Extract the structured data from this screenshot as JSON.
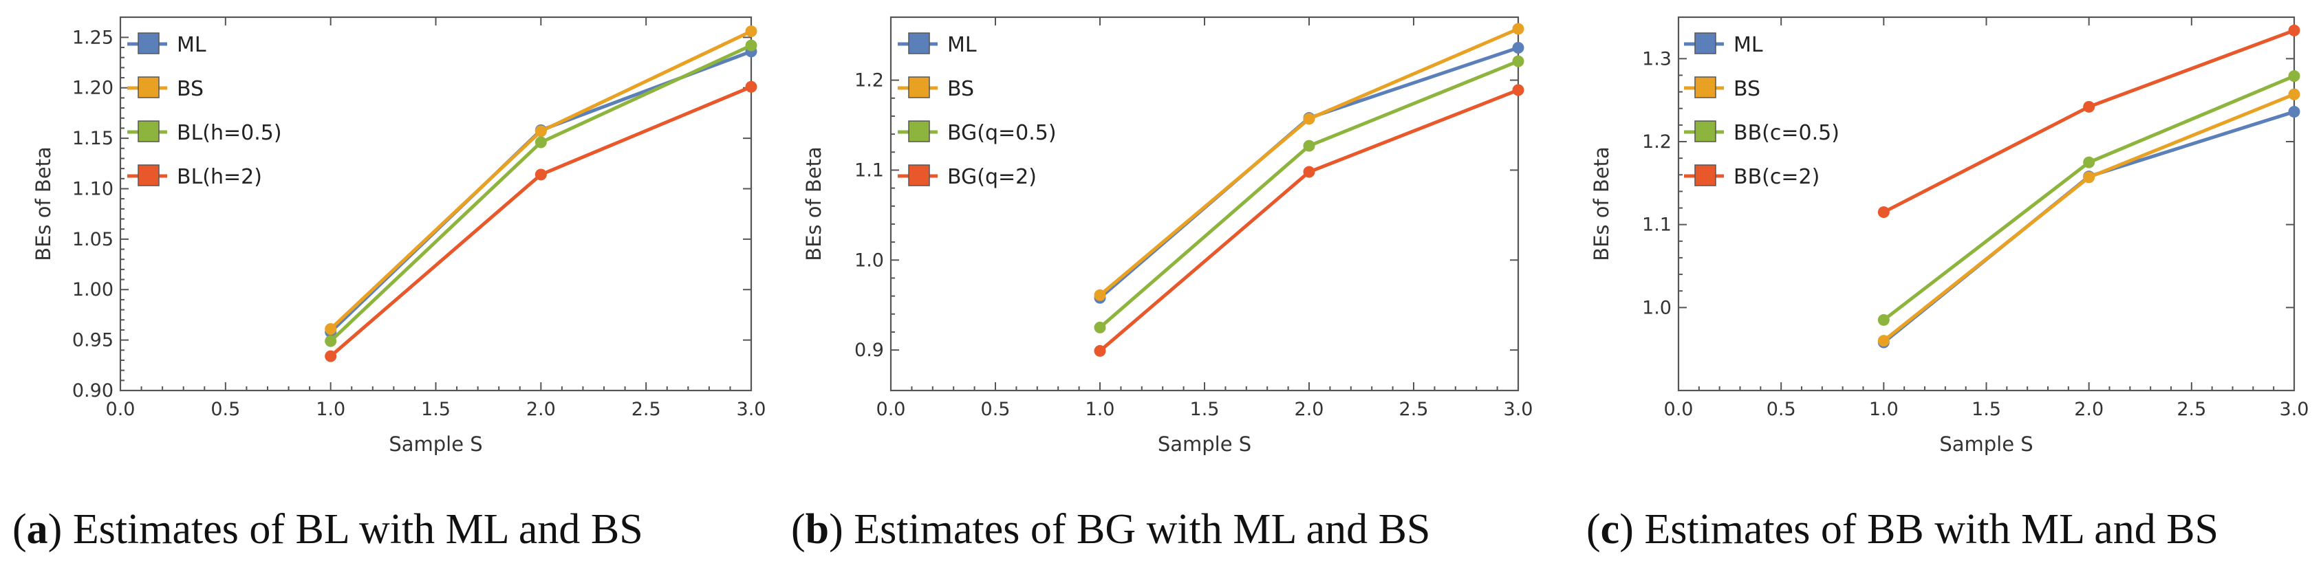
{
  "colors": {
    "ML": "#5b7fb8",
    "BS": "#e9a124",
    "third": "#8db43c",
    "fourth": "#e8582a"
  },
  "chart_data": [
    {
      "type": "line",
      "panel": "a",
      "caption_letter": "a",
      "caption_text": "Estimates of BL with ML and BS",
      "xlabel": "Sample S",
      "ylabel": "BEs of Beta",
      "xlim": [
        0.0,
        3.0
      ],
      "ylim": [
        0.9,
        1.27
      ],
      "xticks": [
        0.0,
        0.5,
        1.0,
        1.5,
        2.0,
        2.5,
        3.0
      ],
      "xtick_labels": [
        "0.0",
        "0.5",
        "1.0",
        "1.5",
        "2.0",
        "2.5",
        "3.0"
      ],
      "yticks": [
        0.9,
        0.95,
        1.0,
        1.05,
        1.1,
        1.15,
        1.2,
        1.25
      ],
      "ytick_labels": [
        "0.90",
        "0.95",
        "1.00",
        "1.05",
        "1.10",
        "1.15",
        "1.20",
        "1.25"
      ],
      "legend_position": "top-left",
      "x": [
        1,
        2,
        3
      ],
      "series": [
        {
          "name": "ML",
          "label": "ML",
          "color_key": "ML",
          "values": [
            0.958,
            1.158,
            1.236
          ]
        },
        {
          "name": "BS",
          "label": "BS",
          "color_key": "BS",
          "values": [
            0.961,
            1.157,
            1.256
          ]
        },
        {
          "name": "BL(h=0.5)",
          "label": "BL(h=0.5)",
          "color_key": "third",
          "values": [
            0.949,
            1.146,
            1.242
          ]
        },
        {
          "name": "BL(h=2)",
          "label": " BL(h=2)",
          "color_key": "fourth",
          "values": [
            0.934,
            1.114,
            1.201
          ]
        }
      ]
    },
    {
      "type": "line",
      "panel": "b",
      "caption_letter": "b",
      "caption_text": "Estimates of BG with ML and BS",
      "xlabel": "Sample S",
      "ylabel": "BEs of Beta",
      "xlim": [
        0.0,
        3.0
      ],
      "ylim": [
        0.855,
        1.27
      ],
      "xticks": [
        0.0,
        0.5,
        1.0,
        1.5,
        2.0,
        2.5,
        3.0
      ],
      "xtick_labels": [
        "0.0",
        "0.5",
        "1.0",
        "1.5",
        "2.0",
        "2.5",
        "3.0"
      ],
      "yticks": [
        0.9,
        1.0,
        1.1,
        1.2
      ],
      "ytick_labels": [
        "0.9",
        "1.0",
        "1.1",
        "1.2"
      ],
      "legend_position": "top-left",
      "x": [
        1,
        2,
        3
      ],
      "series": [
        {
          "name": "ML",
          "label": "ML",
          "color_key": "ML",
          "values": [
            0.958,
            1.158,
            1.236
          ]
        },
        {
          "name": "BS",
          "label": "BS",
          "color_key": "BS",
          "values": [
            0.961,
            1.157,
            1.257
          ]
        },
        {
          "name": "BG(q=0.5)",
          "label": "BG(q=0.5)",
          "color_key": "third",
          "values": [
            0.925,
            1.127,
            1.221
          ]
        },
        {
          "name": "BG(q=2)",
          "label": " BG(q=2)",
          "color_key": "fourth",
          "values": [
            0.899,
            1.098,
            1.189
          ]
        }
      ]
    },
    {
      "type": "line",
      "panel": "c",
      "caption_letter": "c",
      "caption_text": "Estimates of BB with ML and BS",
      "xlabel": "Sample S",
      "ylabel": "BEs of Beta",
      "xlim": [
        0.0,
        3.0
      ],
      "ylim": [
        0.9,
        1.35
      ],
      "xticks": [
        0.0,
        0.5,
        1.0,
        1.5,
        2.0,
        2.5,
        3.0
      ],
      "xtick_labels": [
        "0.0",
        "0.5",
        "1.0",
        "1.5",
        "2.0",
        "2.5",
        "3.0"
      ],
      "yticks": [
        1.0,
        1.1,
        1.2,
        1.3
      ],
      "ytick_labels": [
        "1.0",
        "1.1",
        "1.2",
        "1.3"
      ],
      "legend_position": "top-left",
      "x": [
        1,
        2,
        3
      ],
      "series": [
        {
          "name": "ML",
          "label": "ML",
          "color_key": "ML",
          "values": [
            0.958,
            1.158,
            1.236
          ]
        },
        {
          "name": "BS",
          "label": "BS",
          "color_key": "BS",
          "values": [
            0.96,
            1.157,
            1.257
          ]
        },
        {
          "name": "BB(c=0.5)",
          "label": "BB(c=0.5)",
          "color_key": "third",
          "values": [
            0.985,
            1.175,
            1.279
          ]
        },
        {
          "name": "BB(c=2)",
          "label": " BB(c=2)",
          "color_key": "fourth",
          "values": [
            1.115,
            1.242,
            1.334
          ]
        }
      ]
    }
  ]
}
